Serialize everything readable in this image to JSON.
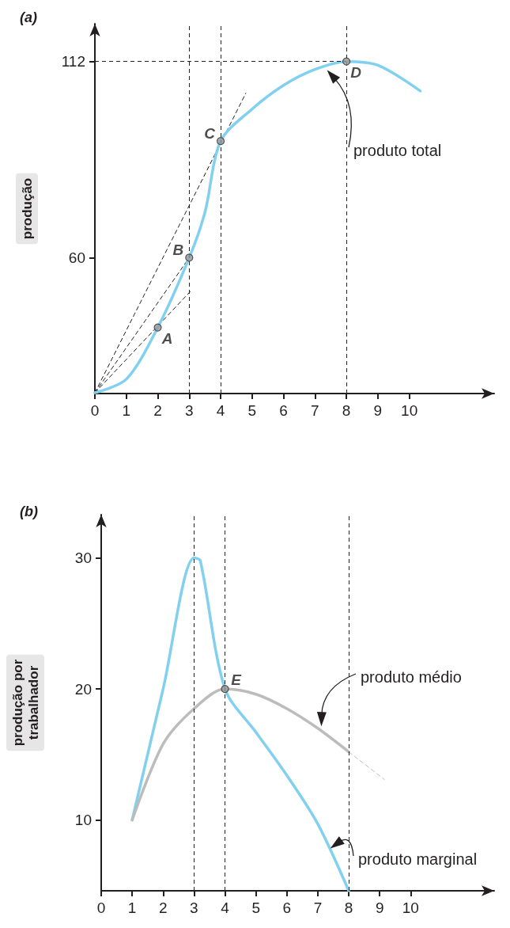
{
  "chart_data": [
    {
      "type": "line",
      "title": "(a)",
      "ylabel": "produção",
      "xlim": [
        0,
        12.7
      ],
      "ylim": [
        24,
        122
      ],
      "xticks": [
        0,
        1,
        2,
        3,
        4,
        5,
        6,
        7,
        8,
        9,
        10
      ],
      "yticks": [
        60,
        112
      ],
      "grid": false,
      "marker": "none",
      "ref_lines": [
        {
          "axis": "x",
          "value": 3
        },
        {
          "axis": "x",
          "value": 4
        },
        {
          "axis": "x",
          "value": 8
        },
        {
          "axis": "y",
          "value": 112
        }
      ],
      "series": [
        {
          "name": "produto total",
          "color": "#82d0f0",
          "x": [
            0,
            1,
            2,
            3,
            3.5,
            4,
            5,
            6,
            7,
            8,
            9,
            10.35
          ],
          "values": [
            24.2,
            27.8,
            41.5,
            60,
            72,
            90.9,
            99.4,
            105.7,
            109.9,
            112,
            111,
            104.2
          ]
        },
        {
          "color": "#222222",
          "line_style": "dashed",
          "x": [
            0,
            4.8
          ],
          "values": [
            24.2,
            103.6
          ]
        },
        {
          "color": "#222222",
          "line_style": "dashed",
          "x": [
            0,
            3
          ],
          "values": [
            24.2,
            60
          ]
        },
        {
          "color": "#222222",
          "line_style": "dashed",
          "x": [
            0,
            3.03
          ],
          "values": [
            24.2,
            51
          ]
        },
        {
          "type": "scatter",
          "marker": "circle",
          "color": "#999999",
          "x": [
            2,
            3,
            4,
            8
          ],
          "values": [
            41.5,
            60,
            90.9,
            112
          ],
          "value_labels": [
            "A",
            "B",
            "C",
            "D"
          ]
        }
      ]
    },
    {
      "type": "line",
      "title": "(b)",
      "ylabel": "produção por\ntrabalhador",
      "xlim": [
        0,
        12.7
      ],
      "ylim": [
        4.6,
        33.3
      ],
      "xticks": [
        0,
        1,
        2,
        3,
        4,
        5,
        6,
        7,
        8,
        9,
        10
      ],
      "yticks": [
        10,
        20,
        30
      ],
      "grid": false,
      "marker": "none",
      "ref_lines": [
        {
          "axis": "x",
          "value": 3
        },
        {
          "axis": "x",
          "value": 4
        },
        {
          "axis": "x",
          "value": 8
        }
      ],
      "series": [
        {
          "name": "produto marginal",
          "color": "#82d0f0",
          "x": [
            1,
            2,
            3,
            3.2,
            4,
            5,
            6,
            7,
            8
          ],
          "values": [
            10,
            20,
            30,
            29.8,
            20,
            16.7,
            13.4,
            9.7,
            4.6
          ]
        },
        {
          "name": "produto médio",
          "color": "#bcbcbc",
          "x": [
            1,
            2,
            3,
            4,
            5,
            6,
            7,
            8
          ],
          "values": [
            10,
            15.8,
            18.5,
            20,
            19.6,
            18.5,
            17,
            15.2
          ]
        },
        {
          "color": "#bcbcbc",
          "line_style": "dashed",
          "x": [
            8,
            9.15
          ],
          "values": [
            15.2,
            13.1
          ]
        },
        {
          "type": "scatter",
          "marker": "circle",
          "color": "#999999",
          "x": [
            4
          ],
          "values": [
            20
          ],
          "value_labels": [
            "E"
          ]
        }
      ]
    }
  ]
}
